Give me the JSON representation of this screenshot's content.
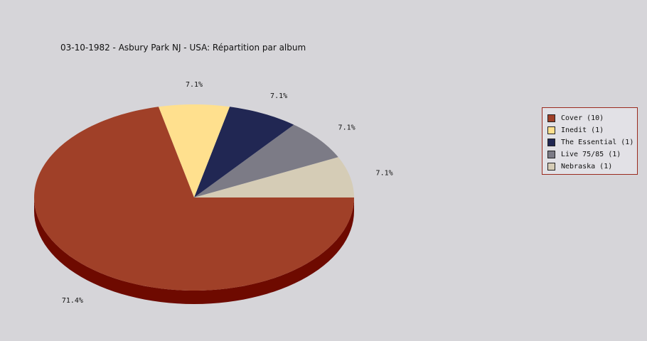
{
  "chart_data": {
    "type": "pie",
    "title": "03-10-1982 - Asbury Park NJ - USA:  Répartition par album",
    "categories": [
      "Cover",
      "Inedit",
      "The Essential",
      "Live 75/85",
      "Nebraska"
    ],
    "values": [
      10,
      1,
      1,
      1,
      1
    ],
    "percent_labels": [
      "71.4%",
      "7.1%",
      "7.1%",
      "7.1%",
      "7.1%"
    ],
    "legend_labels": [
      "Cover (10)",
      "Inedit (1)",
      "The Essential (1)",
      "Live 75/85 (1)",
      "Nebraska (1)"
    ],
    "colors": [
      "#a04028",
      "#ffe08e",
      "#212753",
      "#7c7b86",
      "#d5ccb6"
    ],
    "side_colors": [
      "#6e0a00",
      "#c9a850",
      "#101530",
      "#55545e",
      "#a89f8a"
    ],
    "legend_placement": "right",
    "style": "3d"
  }
}
